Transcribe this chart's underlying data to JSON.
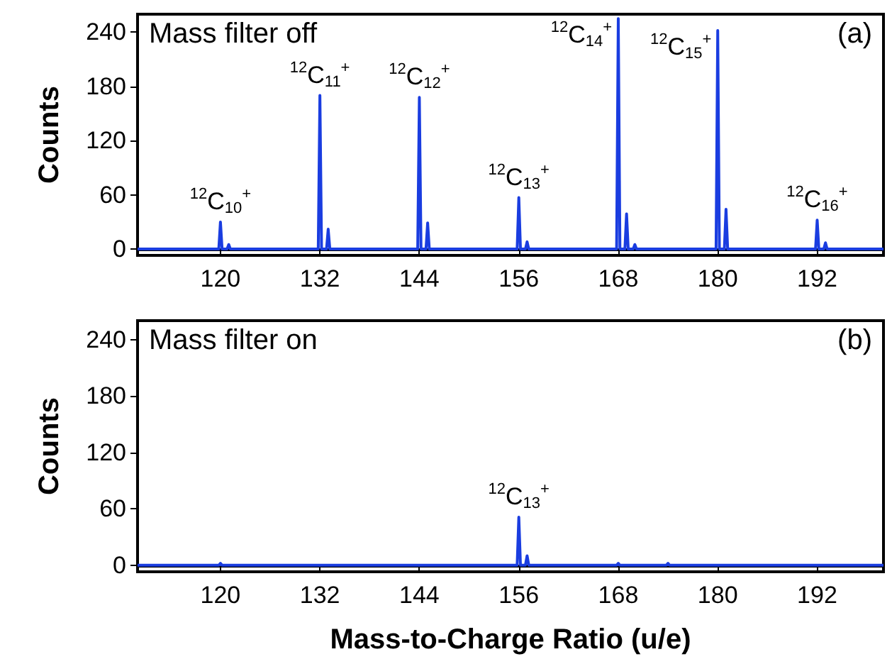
{
  "chart_data": [
    {
      "type": "line",
      "ylabel": "Counts",
      "xlim": [
        110,
        200
      ],
      "ylim": [
        -7,
        260
      ],
      "xticks": [
        120,
        132,
        144,
        156,
        168,
        180,
        192
      ],
      "yticks": [
        0,
        60,
        120,
        180,
        240
      ],
      "series": [
        {
          "color": "#1a3de0",
          "x": [
            110,
            119.8,
            120,
            120.2,
            120.8,
            121,
            121.2,
            131.8,
            132,
            132.2,
            132.8,
            133,
            133.2,
            143.8,
            144,
            144.2,
            144.8,
            145,
            145.2,
            155.8,
            156,
            156.2,
            156.8,
            157,
            157.2,
            167.8,
            168,
            168.2,
            168.8,
            169,
            169.2,
            169.8,
            170,
            170.2,
            179.8,
            180,
            180.2,
            180.8,
            181,
            181.2,
            191.8,
            192,
            192.2,
            192.8,
            193,
            193.2,
            200
          ],
          "values": [
            0,
            0,
            30,
            0,
            0,
            5,
            0,
            0,
            170,
            0,
            0,
            22,
            0,
            0,
            168,
            0,
            0,
            29,
            0,
            0,
            57,
            0,
            0,
            8,
            0,
            0,
            255,
            0,
            0,
            39,
            0,
            0,
            5,
            0,
            0,
            242,
            0,
            0,
            44,
            0,
            0,
            32,
            0,
            0,
            7,
            0,
            0
          ]
        }
      ],
      "annotations": [
        "Mass filter off",
        "(a)",
        {
          "text": "$^{12}$C$_{10}$$^{+}$",
          "x": 120,
          "y": 30
        },
        {
          "text": "$^{12}$C$_{11}$$^{+}$",
          "x": 132,
          "y": 170
        },
        {
          "text": "$^{12}$C$_{12}$$^{+}$",
          "x": 144,
          "y": 168
        },
        {
          "text": "$^{12}$C$_{13}$$^{+}$",
          "x": 156,
          "y": 57
        },
        {
          "text": "$^{12}$C$_{14}$$^{+}$",
          "x": 168,
          "y": 255
        },
        {
          "text": "$^{12}$C$_{15}$$^{+}$",
          "x": 180,
          "y": 242
        },
        {
          "text": "$^{12}$C$_{16}$$^{+}$",
          "x": 192,
          "y": 32
        }
      ]
    },
    {
      "type": "line",
      "ylabel": "Counts",
      "xlabel": "Mass-to-Charge Ratio (u/e)",
      "xlim": [
        110,
        200
      ],
      "ylim": [
        -7,
        260
      ],
      "xticks": [
        120,
        132,
        144,
        156,
        168,
        180,
        192
      ],
      "yticks": [
        0,
        60,
        120,
        180,
        240
      ],
      "series": [
        {
          "color": "#1a3de0",
          "x": [
            110,
            119.8,
            120,
            120.2,
            155.8,
            156,
            156.2,
            156.8,
            157,
            157.2,
            167.8,
            168,
            168.2,
            173.8,
            174,
            174.2,
            200
          ],
          "values": [
            0,
            0,
            2,
            0,
            0,
            51,
            0,
            0,
            10,
            0,
            0,
            2,
            0,
            0,
            2,
            0,
            0
          ]
        }
      ],
      "annotations": [
        "Mass filter on",
        "(b)",
        {
          "text": "$^{12}$C$_{13}$$^{+}$",
          "x": 156,
          "y": 51
        }
      ]
    }
  ]
}
